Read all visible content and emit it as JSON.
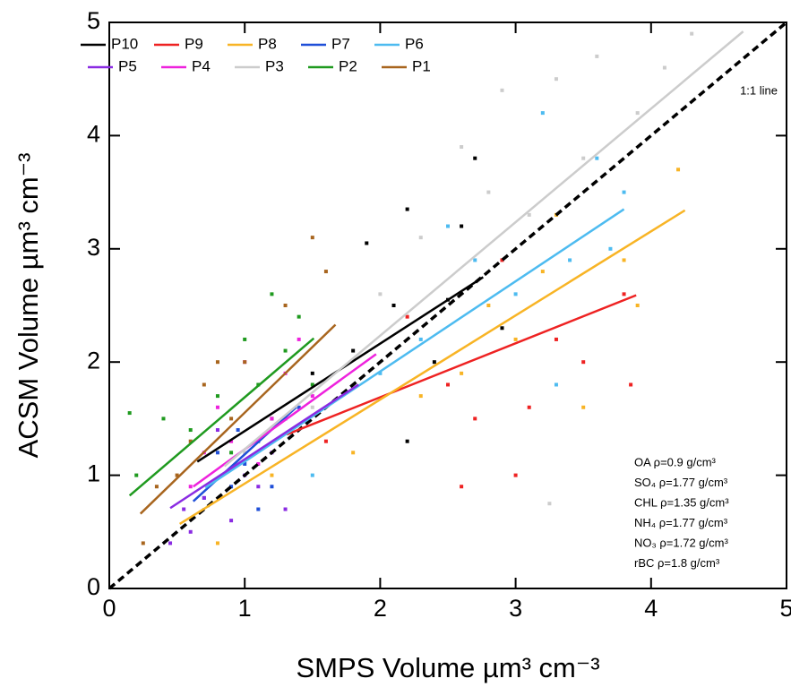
{
  "chart_data": {
    "type": "scatter",
    "x_label": "SMPS Volume µm³ cm⁻³",
    "y_label": "ACSM Volume µm³ cm⁻³",
    "xlim": [
      0,
      5
    ],
    "ylim": [
      0,
      5
    ],
    "xticks": [
      0,
      1,
      2,
      3,
      4,
      5
    ],
    "yticks": [
      0,
      1,
      2,
      3,
      4,
      5
    ],
    "legend": "upper left",
    "reference_line": {
      "label": "1:1 line",
      "x": [
        0,
        5
      ],
      "y": [
        0,
        5
      ],
      "color": "#000000"
    },
    "annotations": [
      "OA ρ=0.9 g/cm³",
      "SO₄ ρ=1.77 g/cm³",
      "CHL ρ=1.35 g/cm³",
      "NH₄ ρ=1.77 g/cm³",
      "NO₃ ρ=1.72 g/cm³",
      "rBC ρ=1.8 g/cm³"
    ],
    "series": [
      {
        "name": "P10",
        "color": "#000000",
        "x": [
          1.2,
          1.5,
          1.8,
          1.9,
          2.1,
          2.2,
          2.4,
          2.5,
          2.6,
          2.7,
          2.2,
          2.9
        ],
        "values": [
          1.5,
          1.9,
          2.1,
          3.05,
          2.5,
          3.35,
          2.0,
          2.55,
          3.2,
          3.8,
          1.3,
          2.3
        ],
        "fit_x": [
          0.65,
          2.76
        ],
        "fit_y": [
          1.12,
          2.75
        ]
      },
      {
        "name": "P9",
        "color": "#ee2222",
        "x": [
          1.6,
          2.2,
          2.5,
          2.6,
          2.7,
          2.9,
          3.1,
          3.3,
          3.5,
          3.8,
          3.85,
          3.0
        ],
        "values": [
          1.3,
          2.4,
          1.8,
          0.9,
          1.5,
          2.9,
          1.6,
          2.2,
          2.0,
          2.6,
          1.8,
          1.0
        ],
        "fit_x": [
          1.31,
          3.89
        ],
        "fit_y": [
          1.36,
          2.59
        ]
      },
      {
        "name": "P8",
        "color": "#f8b425",
        "x": [
          0.8,
          1.2,
          1.8,
          2.3,
          2.6,
          2.8,
          3.0,
          3.2,
          3.3,
          3.5,
          3.8,
          4.2,
          3.9
        ],
        "values": [
          0.4,
          1.0,
          1.2,
          1.7,
          1.9,
          2.5,
          2.2,
          2.8,
          3.3,
          1.6,
          2.9,
          3.7,
          2.5
        ],
        "fit_x": [
          0.52,
          4.25
        ],
        "fit_y": [
          0.57,
          3.34
        ]
      },
      {
        "name": "P7",
        "color": "#1f4fd8",
        "x": [
          0.7,
          0.9,
          1.0,
          1.1,
          1.2,
          1.3,
          0.8,
          1.1,
          1.4,
          0.95
        ],
        "values": [
          0.8,
          0.9,
          1.1,
          1.3,
          0.9,
          1.5,
          1.2,
          0.7,
          1.6,
          1.4
        ],
        "fit_x": [
          0.62,
          1.38
        ],
        "fit_y": [
          0.77,
          1.6
        ]
      },
      {
        "name": "P6",
        "color": "#4dbbf0",
        "x": [
          1.5,
          2.0,
          2.3,
          2.7,
          3.0,
          3.2,
          3.4,
          3.6,
          3.7,
          3.8,
          3.3,
          2.5
        ],
        "values": [
          1.0,
          1.9,
          2.2,
          2.9,
          2.6,
          4.2,
          2.9,
          3.8,
          3.0,
          3.5,
          1.8,
          3.2
        ],
        "fit_x": [
          0.71,
          3.8
        ],
        "fit_y": [
          0.89,
          3.35
        ]
      },
      {
        "name": "P5",
        "color": "#8a2be2",
        "x": [
          0.45,
          0.6,
          0.7,
          0.9,
          1.0,
          1.1,
          1.2,
          0.8,
          1.3,
          0.55
        ],
        "values": [
          0.4,
          0.5,
          0.8,
          0.6,
          1.0,
          0.9,
          1.2,
          1.4,
          0.7,
          0.7
        ],
        "fit_x": [
          0.45,
          1.84
        ],
        "fit_y": [
          0.71,
          1.8
        ]
      },
      {
        "name": "P4",
        "color": "#ee22dd",
        "x": [
          0.6,
          0.8,
          0.9,
          1.0,
          1.2,
          1.3,
          1.5,
          1.1,
          0.7,
          1.4
        ],
        "values": [
          0.9,
          1.6,
          1.3,
          2.0,
          1.5,
          1.9,
          1.7,
          1.1,
          1.2,
          2.2
        ],
        "fit_x": [
          0.62,
          1.97
        ],
        "fit_y": [
          0.9,
          2.07
        ]
      },
      {
        "name": "P3",
        "color": "#cccccc",
        "x": [
          1.0,
          1.5,
          2.0,
          2.3,
          2.8,
          2.9,
          3.1,
          3.3,
          3.5,
          3.6,
          3.9,
          4.1,
          4.3,
          3.25,
          2.6
        ],
        "values": [
          1.2,
          1.6,
          2.6,
          3.1,
          3.5,
          4.4,
          3.3,
          4.5,
          3.8,
          4.7,
          4.2,
          4.6,
          4.9,
          0.75,
          3.9
        ],
        "fit_x": [
          0.85,
          4.68
        ],
        "fit_y": [
          1.08,
          4.92
        ]
      },
      {
        "name": "P2",
        "color": "#1f9a1f",
        "x": [
          0.15,
          0.2,
          0.4,
          0.6,
          0.8,
          1.0,
          1.1,
          1.2,
          1.3,
          1.4,
          1.5,
          0.9
        ],
        "values": [
          1.55,
          1.0,
          1.5,
          1.4,
          1.7,
          2.2,
          1.8,
          2.6,
          2.1,
          2.4,
          1.8,
          1.2
        ],
        "fit_x": [
          0.15,
          1.51
        ],
        "fit_y": [
          0.82,
          2.21
        ]
      },
      {
        "name": "P1",
        "color": "#a8651e",
        "x": [
          0.25,
          0.35,
          0.5,
          0.6,
          0.7,
          0.9,
          1.0,
          1.3,
          1.5,
          1.6,
          0.8
        ],
        "values": [
          0.4,
          0.9,
          1.0,
          1.3,
          1.8,
          1.5,
          2.0,
          2.5,
          3.1,
          2.8,
          2.0
        ],
        "fit_x": [
          0.23,
          1.67
        ],
        "fit_y": [
          0.66,
          2.33
        ]
      }
    ]
  }
}
